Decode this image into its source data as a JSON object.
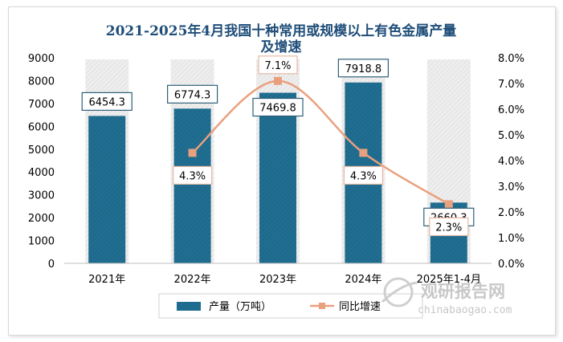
{
  "chart_data": {
    "type": "bar+line",
    "title_lines": [
      "2021-2025年4月我国十种常用或规模以上有色金属产量",
      "及增速"
    ],
    "categories": [
      "2021年",
      "2022年",
      "2023年",
      "2024年",
      "2025年1-4月"
    ],
    "series": [
      {
        "name": "产量（万吨）",
        "type": "bar",
        "axis": "left",
        "values": [
          6454.3,
          6774.3,
          7469.8,
          7918.8,
          2660.3
        ],
        "labels": [
          "6454.3",
          "6774.3",
          "7469.8",
          "7918.8",
          "2660.3"
        ],
        "color": "#1d6a8c"
      },
      {
        "name": "同比增速",
        "type": "line",
        "axis": "right",
        "values": [
          null,
          4.3,
          7.1,
          4.3,
          2.3
        ],
        "labels": [
          "",
          "4.3%",
          "7.1%",
          "4.3%",
          "2.3%"
        ],
        "color": "#e9a07e"
      }
    ],
    "y_left": {
      "min": 0,
      "max": 9000,
      "step": 1000,
      "ticks": [
        "0",
        "1000",
        "2000",
        "3000",
        "4000",
        "5000",
        "6000",
        "7000",
        "8000",
        "9000"
      ]
    },
    "y_right": {
      "min": 0,
      "max": 8,
      "step": 1,
      "ticks": [
        "0.0%",
        "1.0%",
        "2.0%",
        "3.0%",
        "4.0%",
        "5.0%",
        "6.0%",
        "7.0%",
        "8.0%"
      ]
    },
    "grid": false,
    "legend_position": "bottom"
  },
  "watermark": {
    "cn": "观研报告网",
    "en": "chinabaogao.com"
  }
}
